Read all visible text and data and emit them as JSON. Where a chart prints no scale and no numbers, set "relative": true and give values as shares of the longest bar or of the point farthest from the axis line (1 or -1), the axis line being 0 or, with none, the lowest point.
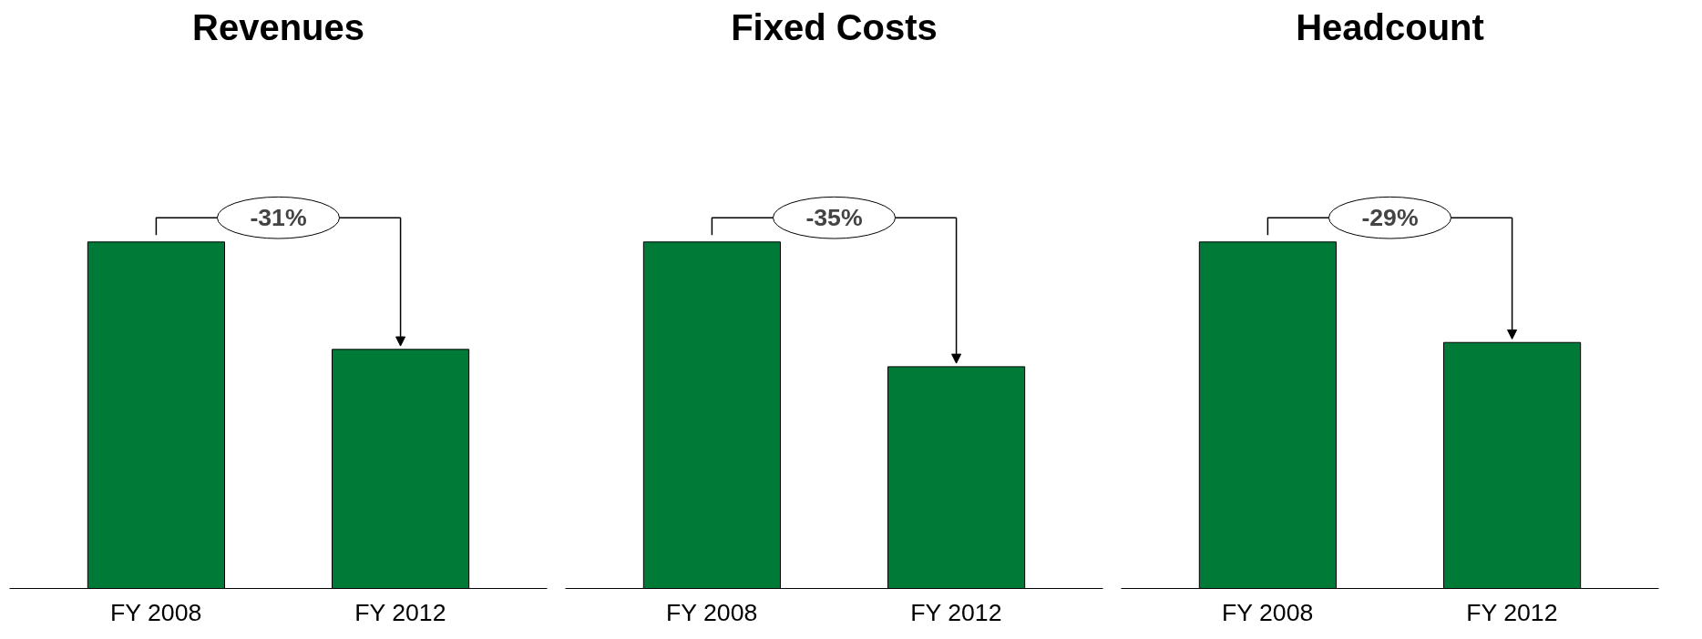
{
  "chart_data": [
    {
      "type": "bar",
      "title": "Revenues",
      "categories": [
        "FY 2008",
        "FY 2012"
      ],
      "values": [
        1,
        0.69
      ],
      "relative": true,
      "color": "#007a37",
      "annotations": [
        "-31%"
      ],
      "grid": false,
      "tick_labels": "x"
    },
    {
      "type": "bar",
      "title": "Fixed Costs",
      "categories": [
        "FY 2008",
        "FY 2012"
      ],
      "values": [
        1,
        0.64
      ],
      "relative": true,
      "color": "#007a37",
      "annotations": [
        "-35%"
      ],
      "grid": false,
      "tick_labels": "x"
    },
    {
      "type": "bar",
      "title": "Headcount",
      "categories": [
        "FY 2008",
        "FY 2012"
      ],
      "values": [
        1,
        0.71
      ],
      "relative": true,
      "color": "#007a37",
      "annotations": [
        "-29%"
      ],
      "grid": false,
      "tick_labels": "x"
    }
  ]
}
